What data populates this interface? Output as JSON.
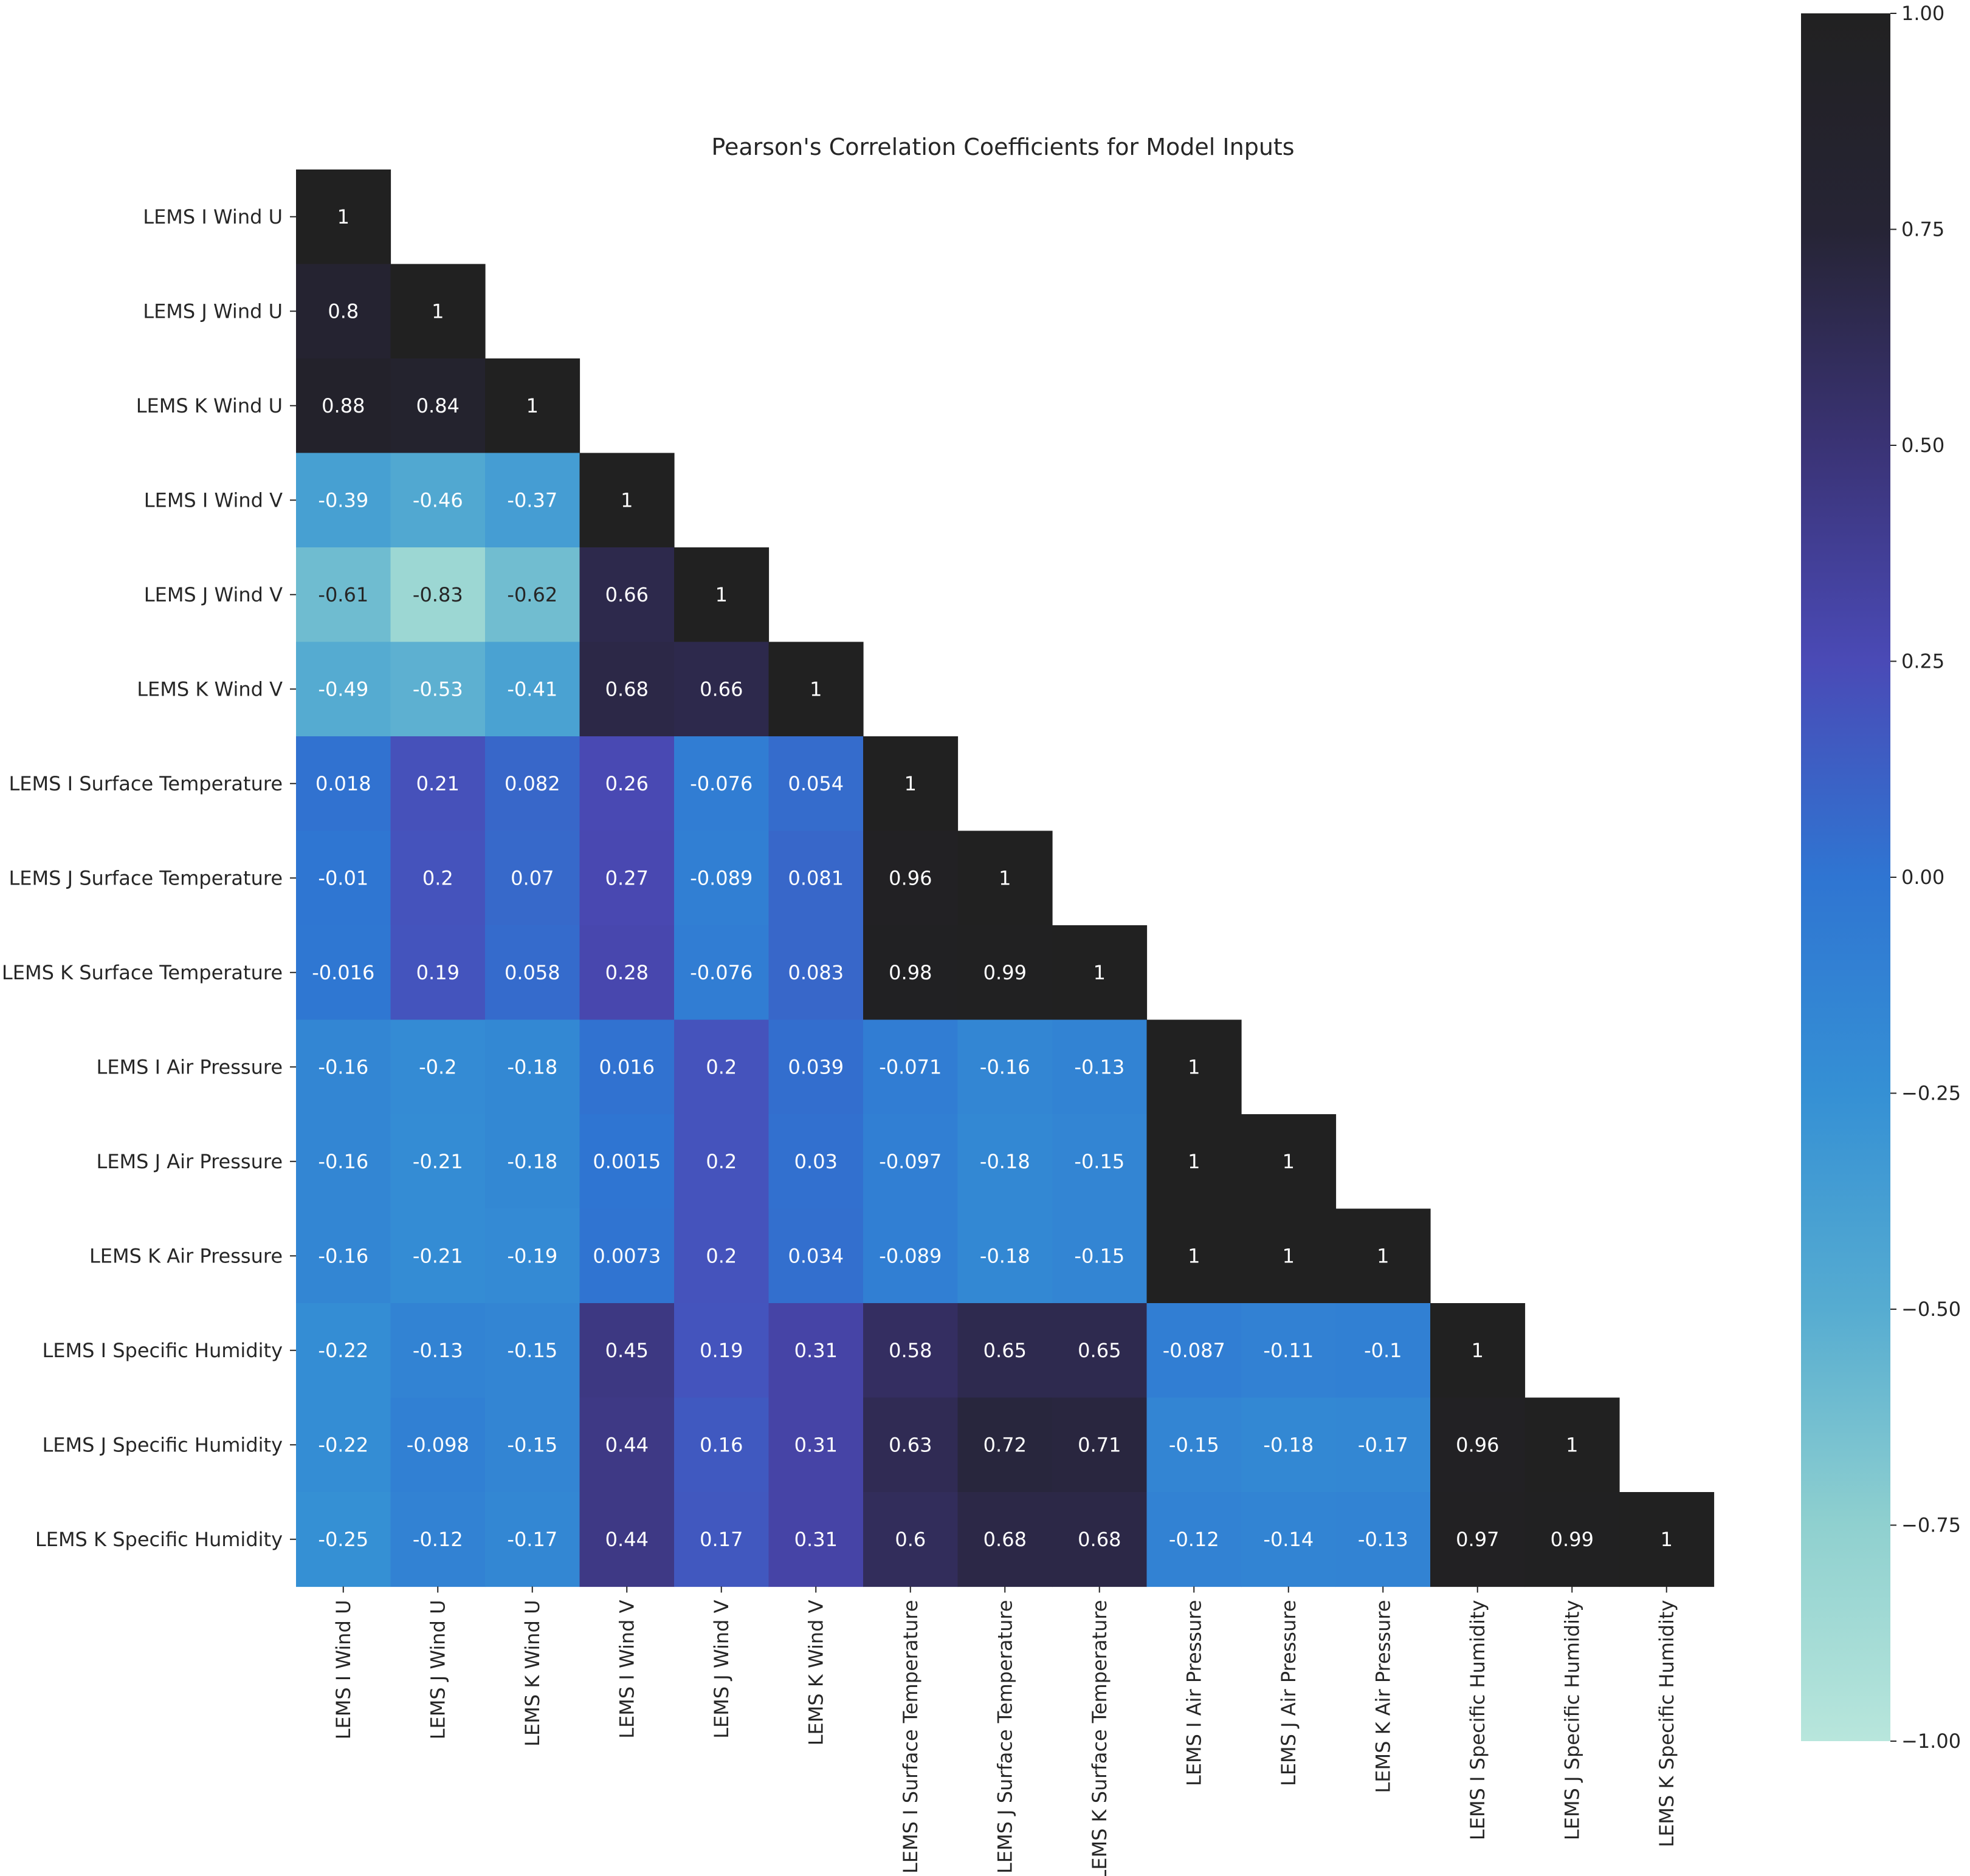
{
  "chart_data": {
    "type": "heatmap",
    "title": "Pearson's Correlation Coefficients for Model Inputs",
    "xlabel": "",
    "ylabel": "",
    "mask": "upper triangle hidden",
    "labels": [
      "LEMS I Wind U",
      "LEMS J Wind U",
      "LEMS K Wind U",
      "LEMS I Wind V",
      "LEMS J Wind V",
      "LEMS K Wind V",
      "LEMS I Surface Temperature",
      "LEMS J Surface Temperature",
      "LEMS K Surface Temperature",
      "LEMS I Air Pressure",
      "LEMS J Air Pressure",
      "LEMS K Air Pressure",
      "LEMS I Specific Humidity",
      "LEMS J Specific Humidity",
      "LEMS K Specific Humidity"
    ],
    "rows": [
      [
        "1"
      ],
      [
        "0.8",
        "1"
      ],
      [
        "0.88",
        "0.84",
        "1"
      ],
      [
        "-0.39",
        "-0.46",
        "-0.37",
        "1"
      ],
      [
        "-0.61",
        "-0.83",
        "-0.62",
        "0.66",
        "1"
      ],
      [
        "-0.49",
        "-0.53",
        "-0.41",
        "0.68",
        "0.66",
        "1"
      ],
      [
        "0.018",
        "0.21",
        "0.082",
        "0.26",
        "-0.076",
        "0.054",
        "1"
      ],
      [
        "-0.01",
        "0.2",
        "0.07",
        "0.27",
        "-0.089",
        "0.081",
        "0.96",
        "1"
      ],
      [
        "-0.016",
        "0.19",
        "0.058",
        "0.28",
        "-0.076",
        "0.083",
        "0.98",
        "0.99",
        "1"
      ],
      [
        "-0.16",
        "-0.2",
        "-0.18",
        "0.016",
        "0.2",
        "0.039",
        "-0.071",
        "-0.16",
        "-0.13",
        "1"
      ],
      [
        "-0.16",
        "-0.21",
        "-0.18",
        "0.0015",
        "0.2",
        "0.03",
        "-0.097",
        "-0.18",
        "-0.15",
        "1",
        "1"
      ],
      [
        "-0.16",
        "-0.21",
        "-0.19",
        "0.0073",
        "0.2",
        "0.034",
        "-0.089",
        "-0.18",
        "-0.15",
        "1",
        "1",
        "1"
      ],
      [
        "-0.22",
        "-0.13",
        "-0.15",
        "0.45",
        "0.19",
        "0.31",
        "0.58",
        "0.65",
        "0.65",
        "-0.087",
        "-0.11",
        "-0.1",
        "1"
      ],
      [
        "-0.22",
        "-0.098",
        "-0.15",
        "0.44",
        "0.16",
        "0.31",
        "0.63",
        "0.72",
        "0.71",
        "-0.15",
        "-0.18",
        "-0.17",
        "0.96",
        "1"
      ],
      [
        "-0.25",
        "-0.12",
        "-0.17",
        "0.44",
        "0.17",
        "0.31",
        "0.6",
        "0.68",
        "0.68",
        "-0.12",
        "-0.14",
        "-0.13",
        "0.97",
        "0.99",
        "1"
      ]
    ],
    "colorbar": {
      "range": [
        -1,
        1
      ],
      "ticks": [
        "1.00",
        "0.75",
        "0.50",
        "0.25",
        "0.00",
        "−0.25",
        "−0.50",
        "−0.75",
        "−1.00"
      ],
      "tick_values": [
        1,
        0.75,
        0.5,
        0.25,
        0,
        -0.25,
        -0.5,
        -0.75,
        -1
      ],
      "colormap_stops": [
        {
          "v": -1.0,
          "color": "#b8e6dc"
        },
        {
          "v": -0.75,
          "color": "#8fd0cf"
        },
        {
          "v": -0.5,
          "color": "#56acd1"
        },
        {
          "v": -0.25,
          "color": "#3590d4"
        },
        {
          "v": 0.0,
          "color": "#2f75d2"
        },
        {
          "v": 0.25,
          "color": "#4a4ab6"
        },
        {
          "v": 0.5,
          "color": "#3a3375"
        },
        {
          "v": 0.75,
          "color": "#262435"
        },
        {
          "v": 1.0,
          "color": "#212121"
        }
      ]
    }
  }
}
